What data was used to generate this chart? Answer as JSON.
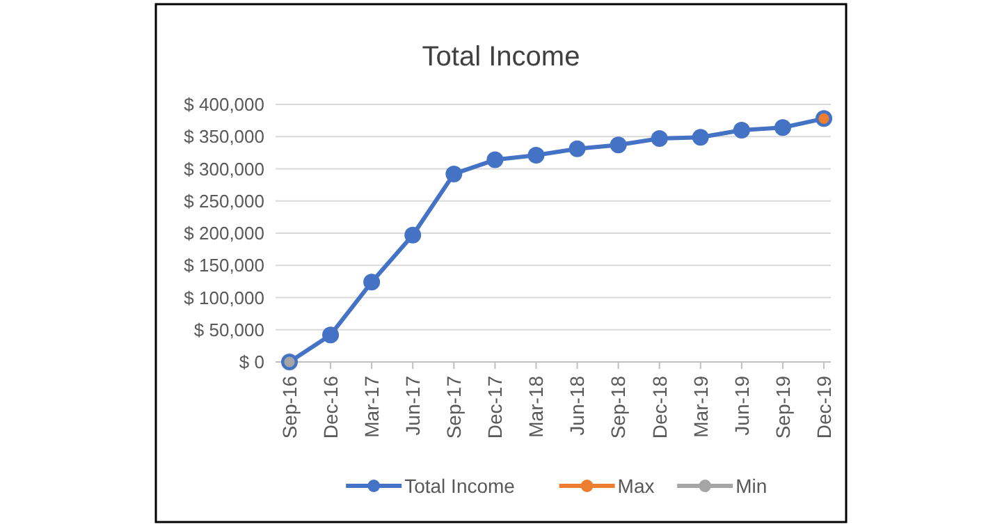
{
  "chart_data": {
    "type": "line",
    "title": "Total Income",
    "categories": [
      "Sep-16",
      "Dec-16",
      "Mar-17",
      "Jun-17",
      "Sep-17",
      "Dec-17",
      "Mar-18",
      "Jun-18",
      "Sep-18",
      "Dec-18",
      "Mar-19",
      "Jun-19",
      "Sep-19",
      "Dec-19"
    ],
    "series": [
      {
        "name": "Total Income",
        "color": "#4472c4",
        "values": [
          0,
          42000,
          124000,
          197000,
          292000,
          314000,
          321000,
          331000,
          337000,
          347000,
          349000,
          360000,
          364000,
          378000
        ]
      },
      {
        "name": "Max",
        "color": "#ed7d31",
        "values": [
          null,
          null,
          null,
          null,
          null,
          null,
          null,
          null,
          null,
          null,
          null,
          null,
          null,
          378000
        ]
      },
      {
        "name": "Min",
        "color": "#a5a5a5",
        "values": [
          0,
          null,
          null,
          null,
          null,
          null,
          null,
          null,
          null,
          null,
          null,
          null,
          null,
          null
        ]
      }
    ],
    "ylim": [
      0,
      400000
    ],
    "yticks": [
      {
        "value": 0,
        "label": "$ 0"
      },
      {
        "value": 50000,
        "label": "$ 50,000"
      },
      {
        "value": 100000,
        "label": "$ 100,000"
      },
      {
        "value": 150000,
        "label": "$ 150,000"
      },
      {
        "value": 200000,
        "label": "$ 200,000"
      },
      {
        "value": 250000,
        "label": "$ 250,000"
      },
      {
        "value": 300000,
        "label": "$ 300,000"
      },
      {
        "value": 350000,
        "label": "$ 350,000"
      },
      {
        "value": 400000,
        "label": "$ 400,000"
      }
    ],
    "grid": "y",
    "legend": "bottom",
    "marker": "circle",
    "line_style": "solid"
  }
}
